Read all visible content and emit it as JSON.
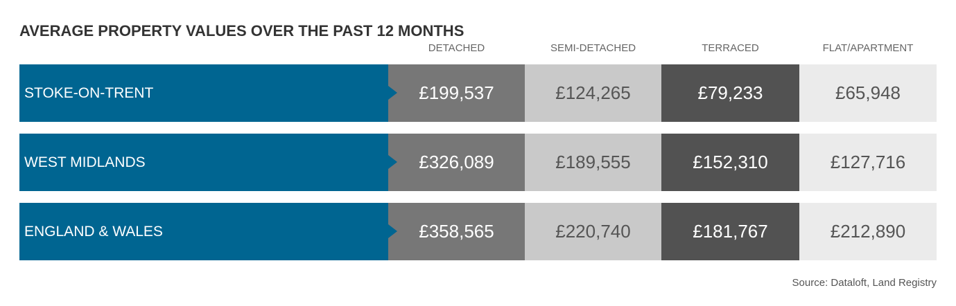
{
  "header": {
    "title": "AVERAGE PROPERTY VALUES OVER THE PAST 12 MONTHS"
  },
  "table": {
    "columns": [
      "DETACHED",
      "SEMI-DETACHED",
      "TERRACED",
      "FLAT/APARTMENT"
    ],
    "rows": [
      {
        "label": "STOKE-ON-TRENT",
        "values": [
          "£199,537",
          "£124,265",
          "£79,233",
          "£65,948"
        ]
      },
      {
        "label": "WEST MIDLANDS",
        "values": [
          "£326,089",
          "£189,555",
          "£152,310",
          "£127,716"
        ]
      },
      {
        "label": "ENGLAND & WALES",
        "values": [
          "£358,565",
          "£220,740",
          "£181,767",
          "£212,890"
        ]
      }
    ]
  },
  "footer": {
    "source": "Source: Dataloft, Land Registry"
  }
}
